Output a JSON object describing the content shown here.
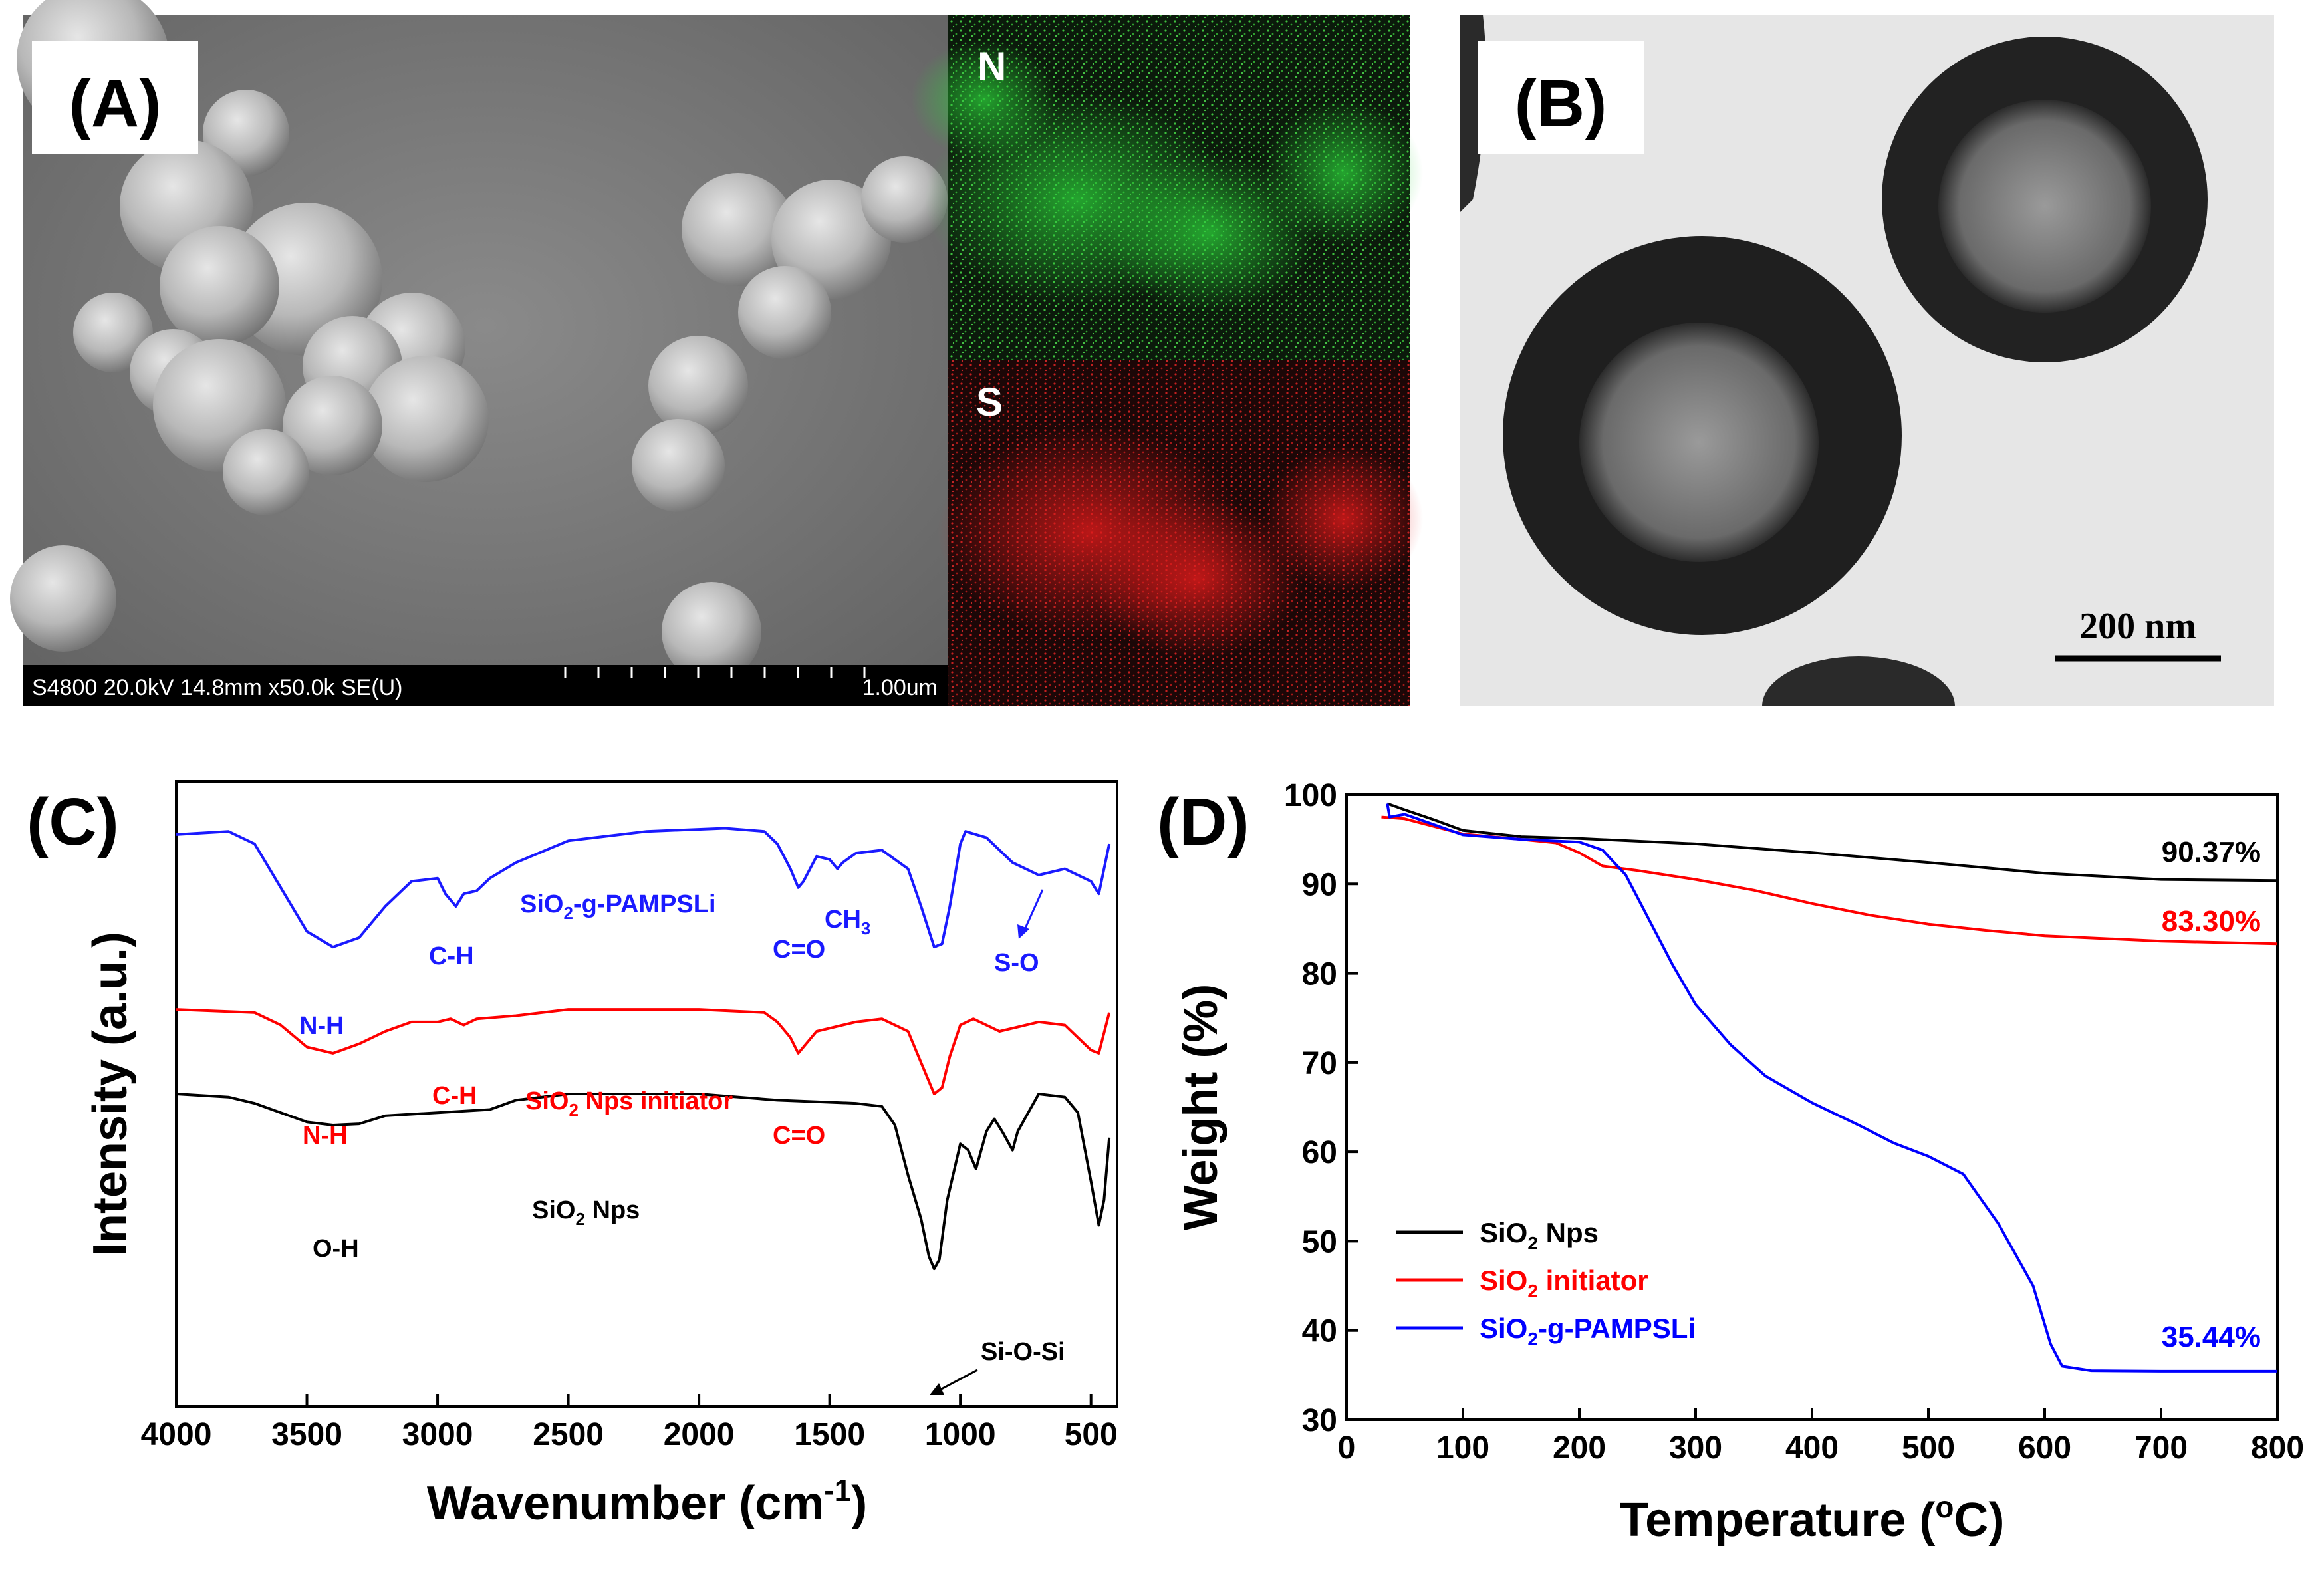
{
  "panel_a": {
    "label": "(A)",
    "sem_footer": "S4800 20.0kV 14.8mm x50.0k SE(U)",
    "scale_text": "1.00um",
    "eds_n_label": "N",
    "eds_s_label": "S"
  },
  "panel_b": {
    "label": "(B)",
    "scale_text": "200 nm"
  },
  "panel_c": {
    "label": "(C)",
    "annotations": {
      "nh_top": "N-H",
      "ch_top": "C-H",
      "co_top": "C=O",
      "ch3_main": "CH",
      "ch3_sub": "3",
      "so": "S-O",
      "nh_mid": "N-H",
      "ch_mid": "C-H",
      "co_mid": "C=O",
      "oh": "O-H",
      "siosi": "Si-O-Si"
    },
    "series_labels": {
      "pampsli_pre": "SiO",
      "pampsli_sub": "2",
      "pampsli_post": "-g-PAMPSLi",
      "init_pre": "SiO",
      "init_sub": "2",
      "init_post": " Nps initiator",
      "nps_pre": "SiO",
      "nps_sub": "2",
      "nps_post": " Nps"
    }
  },
  "panel_d": {
    "label": "(D)",
    "end_labels": {
      "nps": "90.37%",
      "initiator": "83.30%",
      "pampsli": "35.44%"
    },
    "legend": {
      "nps_pre": "SiO",
      "nps_sub": "2",
      "nps_post": " Nps",
      "init_pre": "SiO",
      "init_sub": "2",
      "init_post": " initiator",
      "pam_pre": "SiO",
      "pam_sub": "2",
      "pam_post": "-g-PAMPSLi"
    }
  },
  "chart_data": [
    {
      "type": "line",
      "panel": "C",
      "xlabel_pre": "Wavenumber (cm",
      "xlabel_sup": "-1",
      "xlabel_post": ")",
      "ylabel": "Intensity (a.u.)",
      "xlim": [
        4000,
        400
      ],
      "x_ticks": [
        4000,
        3500,
        3000,
        2500,
        2000,
        1500,
        1000,
        500
      ],
      "y_ticks_shown": false,
      "series": [
        {
          "color": "#1a1aff",
          "points": [
            [
              4000,
              0.915
            ],
            [
              3800,
              0.92
            ],
            [
              3700,
              0.9
            ],
            [
              3600,
              0.83
            ],
            [
              3500,
              0.76
            ],
            [
              3400,
              0.735
            ],
            [
              3300,
              0.75
            ],
            [
              3200,
              0.8
            ],
            [
              3100,
              0.84
            ],
            [
              3000,
              0.845
            ],
            [
              2970,
              0.82
            ],
            [
              2930,
              0.8
            ],
            [
              2900,
              0.82
            ],
            [
              2850,
              0.825
            ],
            [
              2800,
              0.845
            ],
            [
              2700,
              0.87
            ],
            [
              2500,
              0.905
            ],
            [
              2200,
              0.92
            ],
            [
              1900,
              0.925
            ],
            [
              1750,
              0.92
            ],
            [
              1700,
              0.9
            ],
            [
              1650,
              0.86
            ],
            [
              1620,
              0.83
            ],
            [
              1600,
              0.84
            ],
            [
              1550,
              0.88
            ],
            [
              1500,
              0.875
            ],
            [
              1470,
              0.86
            ],
            [
              1450,
              0.87
            ],
            [
              1400,
              0.885
            ],
            [
              1300,
              0.89
            ],
            [
              1200,
              0.86
            ],
            [
              1150,
              0.8
            ],
            [
              1100,
              0.735
            ],
            [
              1070,
              0.74
            ],
            [
              1040,
              0.8
            ],
            [
              1000,
              0.9
            ],
            [
              980,
              0.92
            ],
            [
              900,
              0.91
            ],
            [
              800,
              0.87
            ],
            [
              750,
              0.86
            ],
            [
              700,
              0.85
            ],
            [
              600,
              0.86
            ],
            [
              500,
              0.84
            ],
            [
              470,
              0.82
            ],
            [
              430,
              0.9
            ]
          ]
        },
        {
          "color": "#ff0000",
          "points": [
            [
              4000,
              0.635
            ],
            [
              3700,
              0.63
            ],
            [
              3600,
              0.61
            ],
            [
              3500,
              0.575
            ],
            [
              3400,
              0.565
            ],
            [
              3300,
              0.58
            ],
            [
              3200,
              0.6
            ],
            [
              3100,
              0.615
            ],
            [
              3000,
              0.615
            ],
            [
              2950,
              0.62
            ],
            [
              2900,
              0.61
            ],
            [
              2850,
              0.62
            ],
            [
              2700,
              0.625
            ],
            [
              2500,
              0.635
            ],
            [
              2000,
              0.635
            ],
            [
              1750,
              0.63
            ],
            [
              1700,
              0.615
            ],
            [
              1650,
              0.59
            ],
            [
              1620,
              0.565
            ],
            [
              1600,
              0.575
            ],
            [
              1550,
              0.6
            ],
            [
              1500,
              0.605
            ],
            [
              1400,
              0.615
            ],
            [
              1300,
              0.62
            ],
            [
              1200,
              0.6
            ],
            [
              1150,
              0.55
            ],
            [
              1100,
              0.5
            ],
            [
              1070,
              0.51
            ],
            [
              1040,
              0.56
            ],
            [
              1000,
              0.61
            ],
            [
              950,
              0.62
            ],
            [
              850,
              0.6
            ],
            [
              800,
              0.605
            ],
            [
              700,
              0.615
            ],
            [
              600,
              0.61
            ],
            [
              500,
              0.57
            ],
            [
              470,
              0.565
            ],
            [
              430,
              0.63
            ]
          ]
        },
        {
          "color": "#000000",
          "points": [
            [
              4000,
              0.5
            ],
            [
              3800,
              0.495
            ],
            [
              3700,
              0.485
            ],
            [
              3600,
              0.47
            ],
            [
              3500,
              0.455
            ],
            [
              3400,
              0.45
            ],
            [
              3300,
              0.452
            ],
            [
              3200,
              0.465
            ],
            [
              3000,
              0.47
            ],
            [
              2800,
              0.475
            ],
            [
              2700,
              0.49
            ],
            [
              2500,
              0.5
            ],
            [
              2000,
              0.5
            ],
            [
              1700,
              0.49
            ],
            [
              1400,
              0.485
            ],
            [
              1300,
              0.48
            ],
            [
              1250,
              0.45
            ],
            [
              1200,
              0.37
            ],
            [
              1150,
              0.3
            ],
            [
              1120,
              0.24
            ],
            [
              1100,
              0.22
            ],
            [
              1080,
              0.235
            ],
            [
              1050,
              0.33
            ],
            [
              1000,
              0.42
            ],
            [
              970,
              0.41
            ],
            [
              940,
              0.38
            ],
            [
              900,
              0.44
            ],
            [
              870,
              0.46
            ],
            [
              840,
              0.44
            ],
            [
              800,
              0.41
            ],
            [
              780,
              0.44
            ],
            [
              700,
              0.5
            ],
            [
              600,
              0.495
            ],
            [
              550,
              0.47
            ],
            [
              500,
              0.36
            ],
            [
              470,
              0.29
            ],
            [
              450,
              0.33
            ],
            [
              430,
              0.43
            ]
          ]
        }
      ]
    },
    {
      "type": "line",
      "panel": "D",
      "xlabel_pre": "Temperature (",
      "xlabel_sup": "o",
      "xlabel_post": "C)",
      "ylabel": "Weight (%)",
      "xlim": [
        0,
        800
      ],
      "ylim": [
        30,
        100
      ],
      "x_ticks": [
        0,
        100,
        200,
        300,
        400,
        500,
        600,
        700,
        800
      ],
      "y_ticks": [
        30,
        40,
        50,
        60,
        70,
        80,
        90,
        100
      ],
      "series": [
        {
          "name": "SiO2 Nps",
          "color": "#000000",
          "points": [
            [
              35,
              99
            ],
            [
              50,
              98.3
            ],
            [
              75,
              97.2
            ],
            [
              100,
              96
            ],
            [
              150,
              95.3
            ],
            [
              200,
              95.1
            ],
            [
              300,
              94.5
            ],
            [
              400,
              93.5
            ],
            [
              500,
              92.4
            ],
            [
              600,
              91.2
            ],
            [
              700,
              90.5
            ],
            [
              800,
              90.37
            ]
          ]
        },
        {
          "name": "SiO2 initiator",
          "color": "#ff0000",
          "points": [
            [
              30,
              97.5
            ],
            [
              50,
              97.3
            ],
            [
              100,
              95.6
            ],
            [
              150,
              95
            ],
            [
              180,
              94.6
            ],
            [
              200,
              93.5
            ],
            [
              220,
              92
            ],
            [
              250,
              91.5
            ],
            [
              300,
              90.5
            ],
            [
              350,
              89.3
            ],
            [
              400,
              87.8
            ],
            [
              450,
              86.5
            ],
            [
              500,
              85.5
            ],
            [
              550,
              84.8
            ],
            [
              600,
              84.2
            ],
            [
              700,
              83.6
            ],
            [
              800,
              83.3
            ]
          ]
        },
        {
          "name": "SiO2-g-PAMPSLi",
          "color": "#0000ff",
          "points": [
            [
              35,
              99
            ],
            [
              37,
              97.5
            ],
            [
              50,
              97.8
            ],
            [
              100,
              95.5
            ],
            [
              150,
              95
            ],
            [
              200,
              94.7
            ],
            [
              220,
              93.8
            ],
            [
              240,
              91
            ],
            [
              260,
              86
            ],
            [
              280,
              81
            ],
            [
              300,
              76.5
            ],
            [
              330,
              72
            ],
            [
              360,
              68.5
            ],
            [
              400,
              65.5
            ],
            [
              440,
              63
            ],
            [
              470,
              61
            ],
            [
              500,
              59.5
            ],
            [
              530,
              57.5
            ],
            [
              560,
              52
            ],
            [
              590,
              45
            ],
            [
              605,
              38.5
            ],
            [
              615,
              36
            ],
            [
              640,
              35.5
            ],
            [
              700,
              35.44
            ],
            [
              800,
              35.44
            ]
          ]
        }
      ]
    }
  ]
}
